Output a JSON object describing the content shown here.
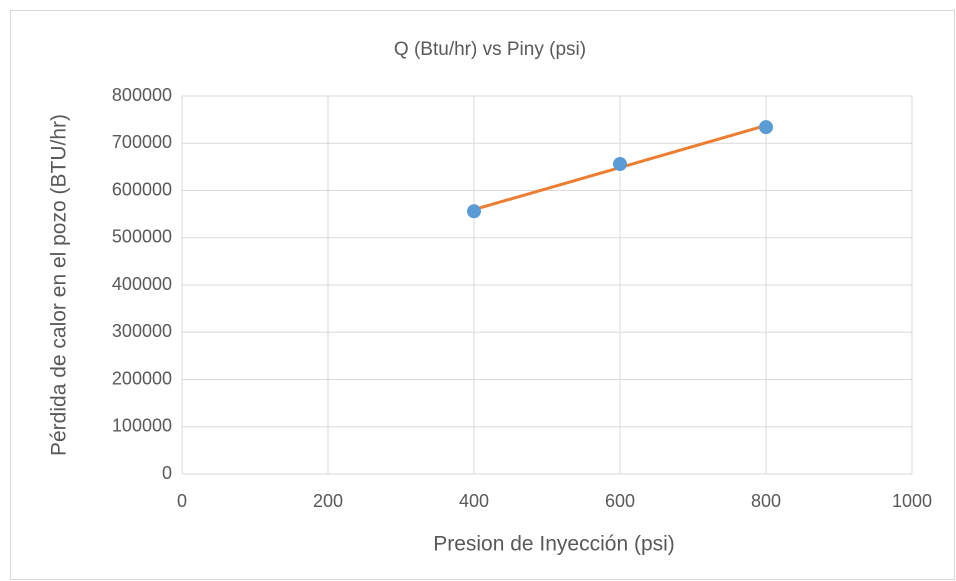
{
  "chart_data": {
    "type": "scatter",
    "title": "Q (Btu/hr) vs Piny (psi)",
    "xlabel": "Presion de Inyección (psi)",
    "ylabel": "Pérdida  de calor en el pozo (BTU/hr)",
    "series": [
      {
        "x": [
          400,
          600,
          800
        ],
        "values": [
          556000,
          656000,
          734000
        ],
        "color": "#5b9bd5"
      }
    ],
    "trendline": {
      "kind": "linear",
      "color": "#ed7d31"
    },
    "xlim": [
      0,
      1000
    ],
    "xticks": [
      0,
      200,
      400,
      600,
      800,
      1000
    ],
    "ylim": [
      0,
      800000
    ],
    "yticks": [
      0,
      100000,
      200000,
      300000,
      400000,
      500000,
      600000,
      700000,
      800000
    ],
    "grid": true
  }
}
